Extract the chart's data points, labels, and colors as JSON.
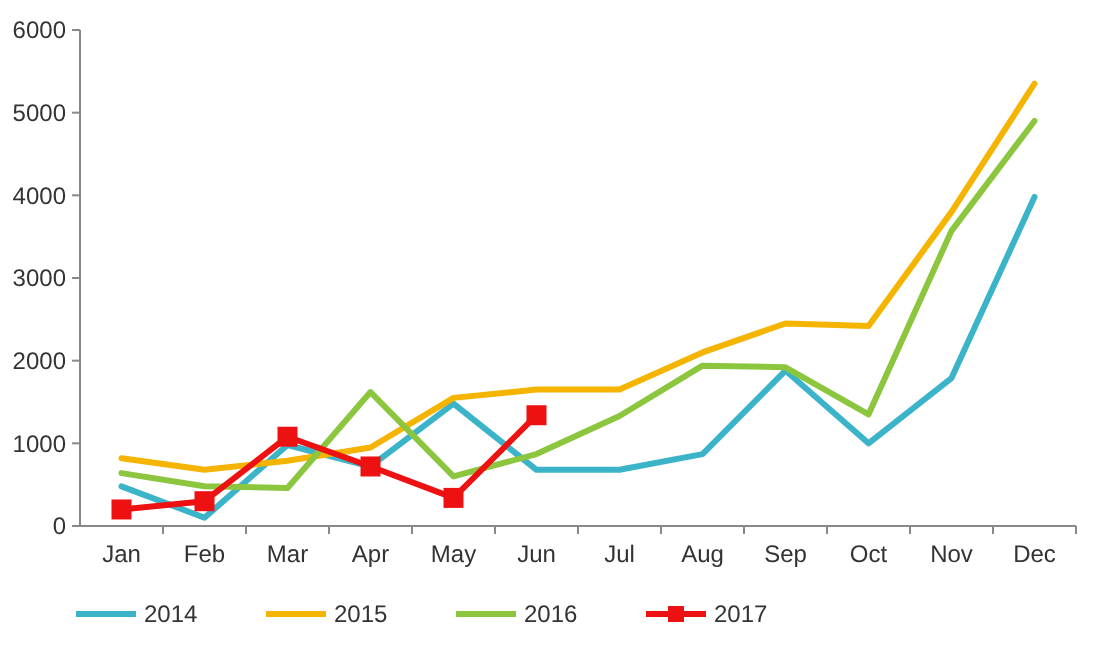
{
  "chart_data": {
    "type": "line",
    "categories": [
      "Jan",
      "Feb",
      "Mar",
      "Apr",
      "May",
      "Jun",
      "Jul",
      "Aug",
      "Sep",
      "Oct",
      "Nov",
      "Dec"
    ],
    "series": [
      {
        "name": "2014",
        "color": "#3bb4c9",
        "marker": "none",
        "values": [
          480,
          100,
          980,
          720,
          1480,
          680,
          680,
          870,
          1880,
          1000,
          1790,
          3980
        ]
      },
      {
        "name": "2015",
        "color": "#f5b400",
        "marker": "none",
        "values": [
          820,
          680,
          790,
          950,
          1550,
          1650,
          1650,
          2100,
          2450,
          2420,
          3800,
          5350
        ]
      },
      {
        "name": "2016",
        "color": "#8cc63f",
        "marker": "none",
        "values": [
          640,
          480,
          460,
          1620,
          600,
          870,
          1330,
          1940,
          1920,
          1350,
          3570,
          4900
        ]
      },
      {
        "name": "2017",
        "color": "#ee1111",
        "marker": "square",
        "values": [
          200,
          300,
          1080,
          720,
          340,
          1340,
          null,
          null,
          null,
          null,
          null,
          null
        ]
      }
    ],
    "ylim": [
      0,
      6000
    ],
    "yticks": [
      0,
      1000,
      2000,
      3000,
      4000,
      5000,
      6000
    ],
    "grid": false,
    "legend": "bottom",
    "line_style": "solid"
  }
}
